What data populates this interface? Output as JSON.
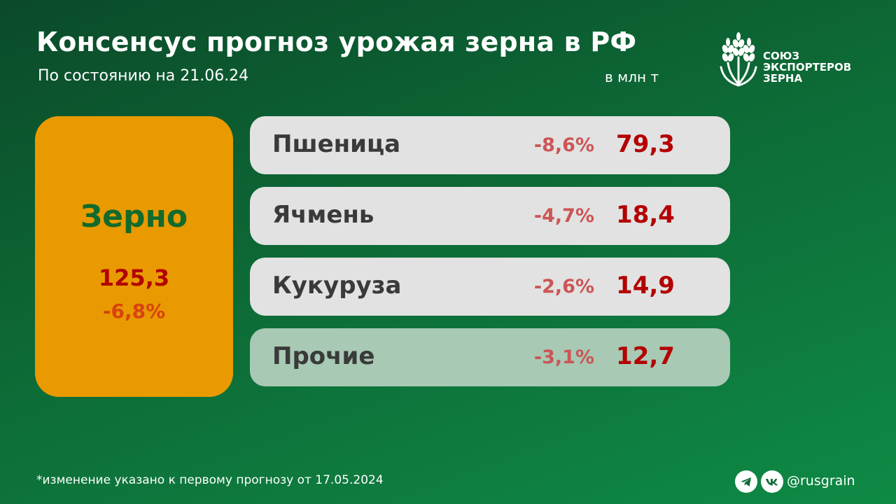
{
  "header": {
    "title": "Консенсус прогноз урожая зерна в РФ",
    "subtitle": "По состоянию на 21.06.24",
    "unit": "в млн т"
  },
  "logo": {
    "icon": "wheat-ears-icon",
    "lines": [
      "СОЮЗ",
      "ЭКСПОРТЕРОВ",
      "ЗЕРНА"
    ]
  },
  "total": {
    "name": "Зерно",
    "value": "125,3",
    "change": "-6,8%"
  },
  "crops": [
    {
      "name": "Пшеница",
      "change": "-8,6%",
      "value": "79,3"
    },
    {
      "name": "Ячмень",
      "change": "-4,7%",
      "value": "18,4"
    },
    {
      "name": "Кукуруза",
      "change": "-2,6%",
      "value": "14,9"
    },
    {
      "name": "Прочие",
      "change": "-3,1%",
      "value": "12,7"
    }
  ],
  "footer": {
    "note": "*изменение указано к первому прогнозу от 17.05.2024",
    "social_icons": [
      "telegram-icon",
      "vk-icon"
    ],
    "handle": "@rusgrain"
  },
  "colors": {
    "background": "#0d6a36",
    "total_card": "#e89a00",
    "row": "#e2e2e2",
    "row_other": "#a8c9b4",
    "value": "#b30000",
    "change": "#cc5555"
  }
}
